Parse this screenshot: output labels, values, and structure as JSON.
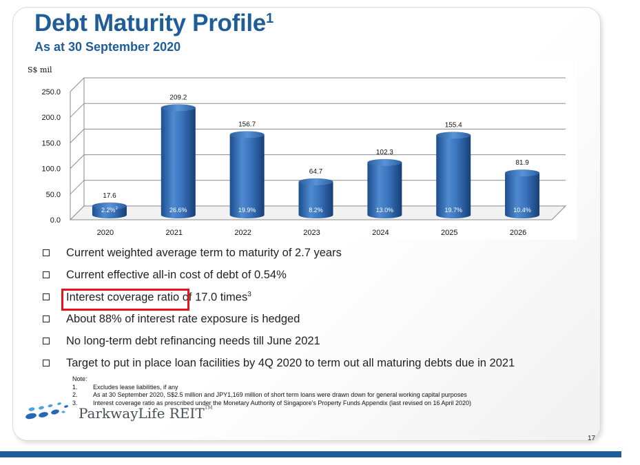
{
  "slide": {
    "title": "Debt Maturity Profile",
    "title_sup": "1",
    "subtitle": "As at 30 September 2020",
    "page_number": "17"
  },
  "chart_data": {
    "type": "bar",
    "ylabel": "S$ mil",
    "ylim": [
      0,
      250
    ],
    "yticks": [
      "0.0",
      "50.0",
      "100.0",
      "150.0",
      "200.0",
      "250.0"
    ],
    "grid": true,
    "bar_color": "#2e6bb5",
    "categories": [
      "2020",
      "2021",
      "2022",
      "2023",
      "2024",
      "2025",
      "2026"
    ],
    "values": [
      17.6,
      209.2,
      156.7,
      64.7,
      102.3,
      155.4,
      81.9
    ],
    "value_labels": [
      "17.6",
      "209.2",
      "156.7",
      "64.7",
      "102.3",
      "155.4",
      "81.9"
    ],
    "percent_labels": [
      "2.2%",
      "26.6%",
      "19.9%",
      "8.2%",
      "13.0%",
      "19.7%",
      "10.4%"
    ],
    "percent_sups": [
      "2",
      "",
      "",
      "",
      "",
      "",
      ""
    ]
  },
  "bullets": [
    {
      "text": "Current weighted average term to maturity of 2.7 years",
      "sup": ""
    },
    {
      "text": "Current effective all-in cost of debt of 0.54%",
      "sup": ""
    },
    {
      "text": "Interest coverage ratio of 17.0 times",
      "sup": "3"
    },
    {
      "text": "About 88% of interest rate exposure is hedged",
      "sup": ""
    },
    {
      "text": "No long-term debt refinancing needs till June 2021",
      "sup": ""
    },
    {
      "text": "Target to put in place loan facilities by 4Q 2020 to term out all maturing debts due in 2021",
      "sup": ""
    }
  ],
  "notes": {
    "heading": "Note:",
    "items": [
      {
        "num": "1.",
        "text": "Excludes lease liabilities, if any"
      },
      {
        "num": "2.",
        "text": "As at 30 September 2020, S$2.5 million and JPY1,169 million of short term loans were drawn down for general working capital purposes"
      },
      {
        "num": "3.",
        "text": "Interest coverage ratio as prescribed under the Monetary Authority of Singapore's Property Funds Appendix (last revised on 16 April 2020)"
      }
    ]
  },
  "logo": {
    "text": "ParkwayLife REIT",
    "tm": "TM"
  },
  "colors": {
    "brand_blue": "#1f5d99",
    "highlight_red": "#e8121c"
  }
}
